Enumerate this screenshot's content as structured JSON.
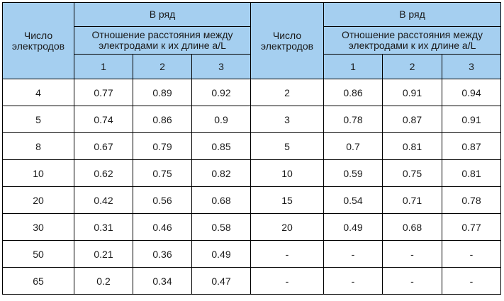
{
  "header": {
    "count_label": "Число электродов",
    "group_label": "В ряд",
    "ratio_label": "Отношение расстояния между электродами к их длине a/L",
    "ratios": [
      "1",
      "2",
      "3"
    ]
  },
  "rows": [
    {
      "left": [
        "4",
        "0.77",
        "0.89",
        "0.92"
      ],
      "right": [
        "2",
        "0.86",
        "0.91",
        "0.94"
      ]
    },
    {
      "left": [
        "5",
        "0.74",
        "0.86",
        "0.9"
      ],
      "right": [
        "3",
        "0.78",
        "0.87",
        "0.91"
      ]
    },
    {
      "left": [
        "8",
        "0.67",
        "0.79",
        "0.85"
      ],
      "right": [
        "5",
        "0.7",
        "0.81",
        "0.87"
      ]
    },
    {
      "left": [
        "10",
        "0.62",
        "0.75",
        "0.82"
      ],
      "right": [
        "10",
        "0.59",
        "0.75",
        "0.81"
      ]
    },
    {
      "left": [
        "20",
        "0.42",
        "0.56",
        "0.68"
      ],
      "right": [
        "15",
        "0.54",
        "0.71",
        "0.78"
      ]
    },
    {
      "left": [
        "30",
        "0.31",
        "0.46",
        "0.58"
      ],
      "right": [
        "20",
        "0.49",
        "0.68",
        "0.77"
      ]
    },
    {
      "left": [
        "50",
        "0.21",
        "0.36",
        "0.49"
      ],
      "right": [
        "-",
        "-",
        "-",
        "-"
      ]
    },
    {
      "left": [
        "65",
        "0.2",
        "0.34",
        "0.47"
      ],
      "right": [
        "-",
        "-",
        "-",
        "-"
      ]
    }
  ]
}
